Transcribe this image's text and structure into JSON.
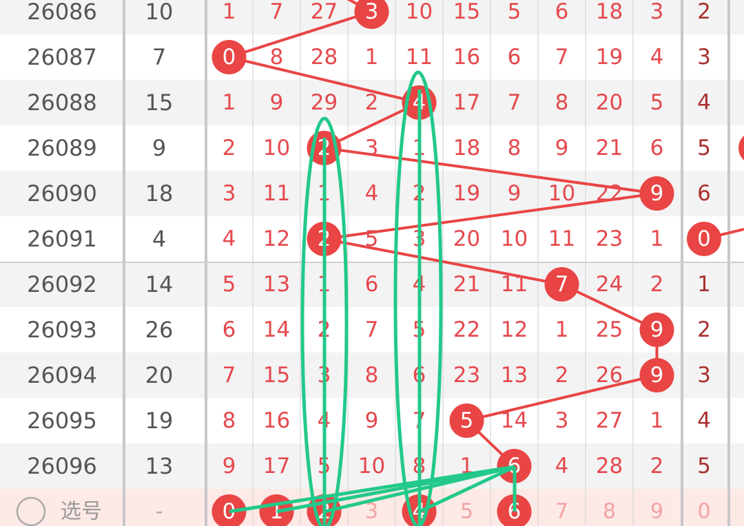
{
  "table": {
    "rows": [
      {
        "period": "26086",
        "sum": "10",
        "cells": [
          "1",
          "7",
          "27",
          "3",
          "10",
          "15",
          "5",
          "6",
          "18",
          "3"
        ],
        "hit": 3,
        "extra": "2",
        "extra_hit": false
      },
      {
        "period": "26087",
        "sum": "7",
        "cells": [
          "0",
          "8",
          "28",
          "1",
          "11",
          "16",
          "6",
          "7",
          "19",
          "4"
        ],
        "hit": 0,
        "extra": "3",
        "extra_hit": false
      },
      {
        "period": "26088",
        "sum": "15",
        "cells": [
          "1",
          "9",
          "29",
          "2",
          "4",
          "17",
          "7",
          "8",
          "20",
          "5"
        ],
        "hit": 4,
        "extra": "4",
        "extra_hit": false
      },
      {
        "period": "26089",
        "sum": "9",
        "cells": [
          "2",
          "10",
          "2",
          "3",
          "1",
          "18",
          "8",
          "9",
          "21",
          "6"
        ],
        "hit": 2,
        "extra": "5",
        "extra_hit": false
      },
      {
        "period": "26090",
        "sum": "18",
        "cells": [
          "3",
          "11",
          "1",
          "4",
          "2",
          "19",
          "9",
          "10",
          "22",
          "9"
        ],
        "hit": 9,
        "extra": "6",
        "extra_hit": false
      },
      {
        "period": "26091",
        "sum": "4",
        "cells": [
          "4",
          "12",
          "2",
          "5",
          "3",
          "20",
          "10",
          "11",
          "23",
          "1"
        ],
        "hit": 2,
        "extra": "0",
        "extra_hit": true
      },
      {
        "period": "26092",
        "sum": "14",
        "cells": [
          "5",
          "13",
          "1",
          "6",
          "4",
          "21",
          "11",
          "7",
          "24",
          "2"
        ],
        "hit": 7,
        "extra": "1",
        "extra_hit": false
      },
      {
        "period": "26093",
        "sum": "26",
        "cells": [
          "6",
          "14",
          "2",
          "7",
          "5",
          "22",
          "12",
          "1",
          "25",
          "9"
        ],
        "hit": 9,
        "extra": "2",
        "extra_hit": false
      },
      {
        "period": "26094",
        "sum": "20",
        "cells": [
          "7",
          "15",
          "3",
          "8",
          "6",
          "23",
          "13",
          "2",
          "26",
          "9"
        ],
        "hit": 9,
        "extra": "3",
        "extra_hit": false
      },
      {
        "period": "26095",
        "sum": "19",
        "cells": [
          "8",
          "16",
          "4",
          "9",
          "7",
          "5",
          "14",
          "3",
          "27",
          "1"
        ],
        "hit": 5,
        "extra": "4",
        "extra_hit": false
      },
      {
        "period": "26096",
        "sum": "13",
        "cells": [
          "9",
          "17",
          "5",
          "10",
          "8",
          "1",
          "6",
          "4",
          "28",
          "2"
        ],
        "hit": 6,
        "extra": "5",
        "extra_hit": false
      }
    ],
    "selection": {
      "label": "选号",
      "sum": "-",
      "options": [
        "0",
        "1",
        "2",
        "3",
        "4",
        "5",
        "6",
        "7",
        "8",
        "9"
      ],
      "selected": [
        true,
        true,
        true,
        false,
        true,
        false,
        true,
        false,
        false,
        false
      ],
      "extra": "0"
    }
  }
}
